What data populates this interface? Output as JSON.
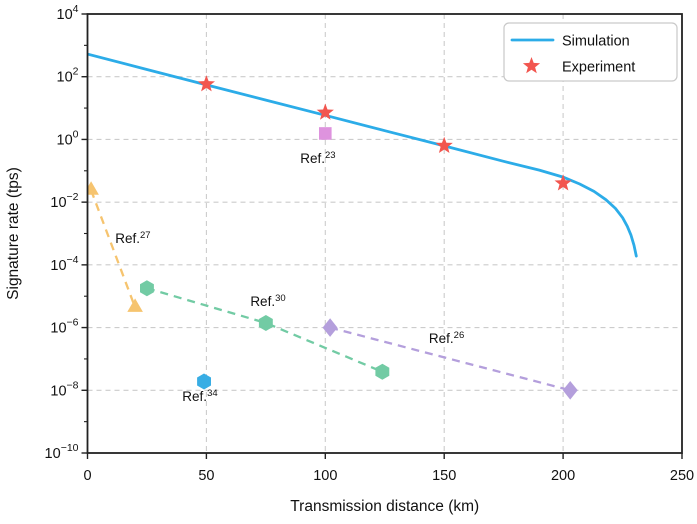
{
  "figure": {
    "background": "#ffffff",
    "spine_color": "#222222",
    "text_color": "#111111"
  },
  "chart_data": {
    "type": "line+scatter",
    "title": "",
    "xlabel": "Transmission distance (km)",
    "ylabel": "Signature rate (tps)",
    "x_axis": {
      "min": 0,
      "max": 250,
      "ticks": [
        0,
        50,
        100,
        150,
        200,
        250
      ]
    },
    "y_axis": {
      "scale": "log10",
      "min_exponent": -10,
      "max_exponent": 4,
      "tick_exponents": [
        4,
        2,
        0,
        -2,
        -4,
        -6,
        -8,
        -10
      ],
      "minor_tick_exponents": [
        3,
        1,
        -1,
        -3,
        -5,
        -7,
        -9
      ]
    },
    "grid": {
      "enabled": true,
      "color": "#cccccc",
      "x_lines_km": [
        50,
        100,
        150,
        200
      ],
      "y_lines_exponents": [
        2,
        0,
        -2,
        -4,
        -6,
        -8
      ]
    },
    "legend": {
      "position": "upper-right",
      "border_color": "#c9c9c9",
      "items": [
        {
          "label": "Simulation",
          "symbol": "line"
        },
        {
          "label": "Experiment",
          "symbol": "star"
        }
      ]
    },
    "series": [
      {
        "name": "Simulation",
        "type": "line",
        "color": "#2CACE8",
        "points_km_tps": [
          [
            0,
            525
          ],
          [
            25,
            170
          ],
          [
            50,
            55
          ],
          [
            75,
            18
          ],
          [
            100,
            5.9
          ],
          [
            125,
            1.9
          ],
          [
            150,
            0.62
          ],
          [
            175,
            0.2
          ],
          [
            190,
            0.105
          ],
          [
            200,
            0.063
          ],
          [
            207,
            0.038
          ],
          [
            213,
            0.022
          ],
          [
            218,
            0.012
          ],
          [
            222,
            0.0063
          ],
          [
            225,
            0.0032
          ],
          [
            227,
            0.0017
          ],
          [
            228.5,
            0.0009
          ],
          [
            229.8,
            0.00042
          ],
          [
            230.8,
            0.00019
          ]
        ]
      },
      {
        "name": "Experiment",
        "type": "scatter",
        "marker": "star",
        "color": "#F2564F",
        "points_km_tps": [
          [
            50,
            58
          ],
          [
            100,
            7.2
          ],
          [
            150,
            0.63
          ],
          [
            200,
            0.04
          ]
        ]
      }
    ],
    "references": [
      {
        "label_prefix": "Ref.",
        "label_sup": "23",
        "color": "#DE93DE",
        "marker": "square",
        "dashed_line": false,
        "points_km_tps": [
          [
            100,
            1.55
          ]
        ],
        "label_anchor_km_tps": [
          96.9,
          0.235
        ]
      },
      {
        "label_prefix": "Ref.",
        "label_sup": "27",
        "color": "#F6C46F",
        "marker": "triangle",
        "dashed_line": true,
        "points_km_tps": [
          [
            1.5,
            0.024
          ],
          [
            20,
            4.4e-06
          ]
        ],
        "label_anchor_km_tps": [
          19.1,
          0.00067
        ]
      },
      {
        "label_prefix": "Ref.",
        "label_sup": "30",
        "color": "#72CBA4",
        "marker": "hexagon",
        "dashed_line": true,
        "points_km_tps": [
          [
            25,
            1.8e-05
          ],
          [
            75,
            1.4e-06
          ],
          [
            124,
            3.9e-08
          ]
        ],
        "label_anchor_km_tps": [
          75.9,
          6.5e-06
        ]
      },
      {
        "label_prefix": "Ref.",
        "label_sup": "34",
        "color": "#38ADE4",
        "marker": "hexagon",
        "dashed_line": false,
        "points_km_tps": [
          [
            49,
            1.9e-08
          ]
        ],
        "label_anchor_km_tps": [
          47.3,
          6.1e-09
        ]
      },
      {
        "label_prefix": "Ref.",
        "label_sup": "26",
        "color": "#B49FDC",
        "marker": "diamond",
        "dashed_line": true,
        "points_km_tps": [
          [
            102,
            1e-06
          ],
          [
            203,
            1e-08
          ]
        ],
        "label_anchor_km_tps": [
          151,
          4.3e-07
        ]
      }
    ]
  }
}
